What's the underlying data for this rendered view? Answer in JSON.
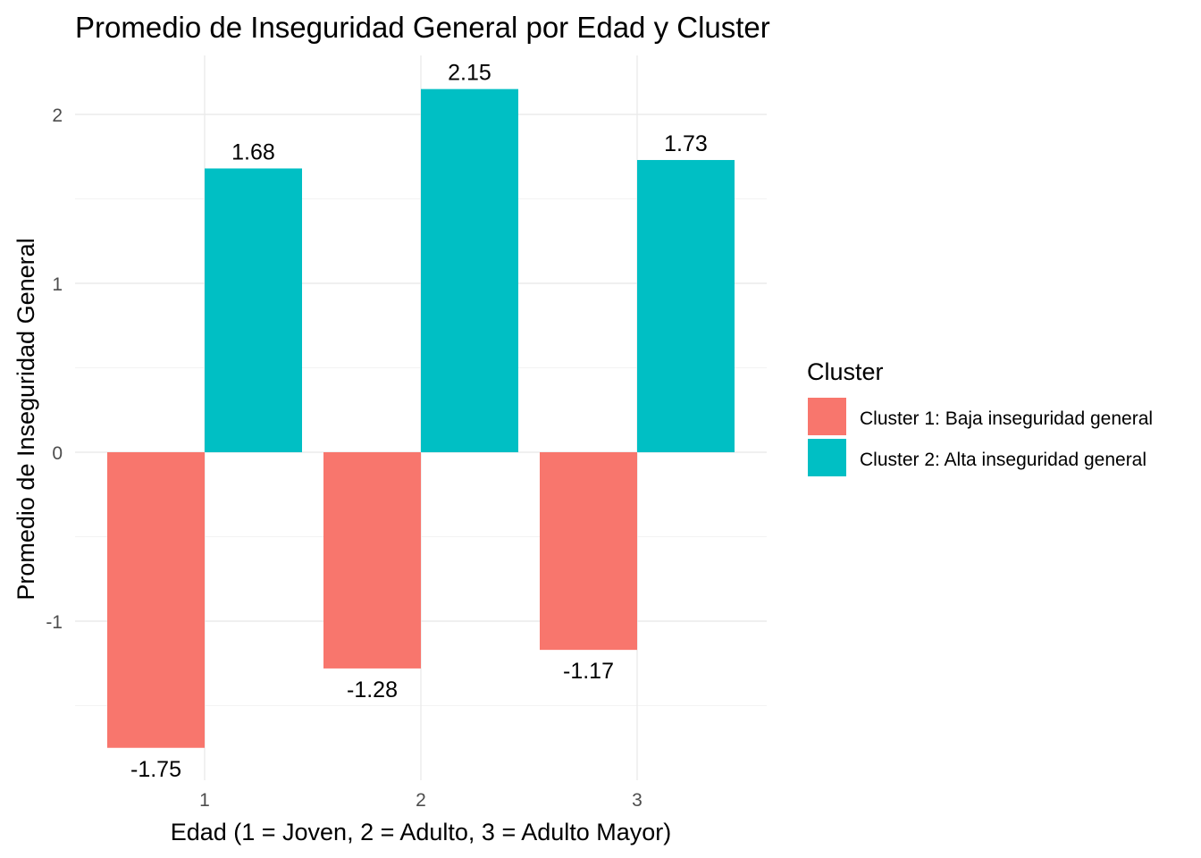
{
  "chart_data": {
    "type": "bar",
    "title": "Promedio de Inseguridad General por Edad y Cluster",
    "xlabel": "Edad (1 = Joven, 2 = Adulto, 3 = Adulto Mayor)",
    "ylabel": "Promedio de Inseguridad General",
    "categories": [
      "1",
      "2",
      "3"
    ],
    "series": [
      {
        "name": "Cluster 1: Baja inseguridad general",
        "color": "#F8766D",
        "values": [
          -1.75,
          -1.28,
          -1.17
        ],
        "labels": [
          "-1.75",
          "-1.28",
          "-1.17"
        ]
      },
      {
        "name": "Cluster 2: Alta inseguridad general",
        "color": "#00BFC4",
        "values": [
          1.68,
          2.15,
          1.73
        ],
        "labels": [
          "1.68",
          "2.15",
          "1.73"
        ]
      }
    ],
    "ylim": [
      -1.9,
      2.3
    ],
    "yticks": [
      -1,
      0,
      1,
      2
    ],
    "yticks_minor": [
      -1.5,
      -0.5,
      0.5,
      1.5
    ],
    "grid": true,
    "legend": {
      "title": "Cluster",
      "position": "right"
    }
  }
}
